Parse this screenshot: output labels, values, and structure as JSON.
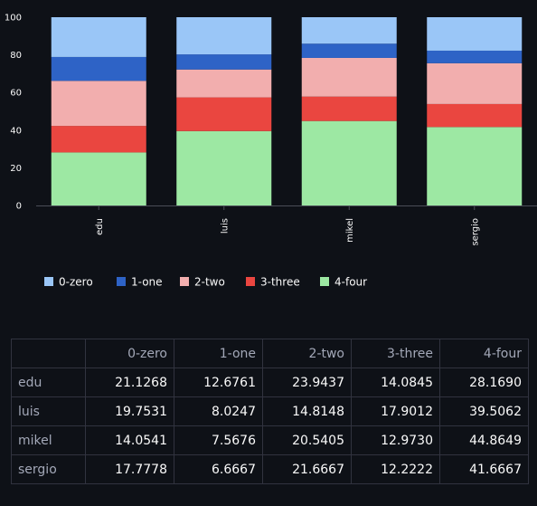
{
  "chart_data": {
    "type": "bar",
    "stacked": true,
    "categories": [
      "edu",
      "luis",
      "mikel",
      "sergio"
    ],
    "ylim": [
      0,
      100
    ],
    "y_ticks": [
      0,
      20,
      40,
      60,
      80,
      100
    ],
    "legend_position": "bottom-left",
    "series": [
      {
        "name": "4-four",
        "color": "#9de8a3",
        "values": [
          28.169,
          39.5062,
          44.8649,
          41.6667
        ]
      },
      {
        "name": "3-three",
        "color": "#ea4640",
        "values": [
          14.0845,
          17.9012,
          12.973,
          12.2222
        ]
      },
      {
        "name": "2-two",
        "color": "#f2aeae",
        "values": [
          23.9437,
          14.8148,
          20.5405,
          21.6667
        ]
      },
      {
        "name": "1-one",
        "color": "#2e63c6",
        "values": [
          12.6761,
          8.0247,
          7.5676,
          6.6667
        ]
      },
      {
        "name": "0-zero",
        "color": "#9ac6f7",
        "values": [
          21.1268,
          19.7531,
          14.0541,
          17.7778
        ]
      }
    ],
    "legend_order": [
      "0-zero",
      "1-one",
      "2-two",
      "3-three",
      "4-four"
    ]
  },
  "table": {
    "columns": [
      "0-zero",
      "1-one",
      "2-two",
      "3-three",
      "4-four"
    ],
    "rows": [
      {
        "label": "edu",
        "cells": [
          "21.1268",
          "12.6761",
          "23.9437",
          "14.0845",
          "28.1690"
        ]
      },
      {
        "label": "luis",
        "cells": [
          "19.7531",
          "8.0247",
          "14.8148",
          "17.9012",
          "39.5062"
        ]
      },
      {
        "label": "mikel",
        "cells": [
          "14.0541",
          "7.5676",
          "20.5405",
          "12.9730",
          "44.8649"
        ]
      },
      {
        "label": "sergio",
        "cells": [
          "17.7778",
          "6.6667",
          "21.6667",
          "12.2222",
          "41.6667"
        ]
      }
    ]
  },
  "colors": {
    "background": "#0e1117",
    "text": "#fafafa",
    "muted_text": "#a3a8b8",
    "grid": "#31333f",
    "axis": "#4a4d57"
  }
}
